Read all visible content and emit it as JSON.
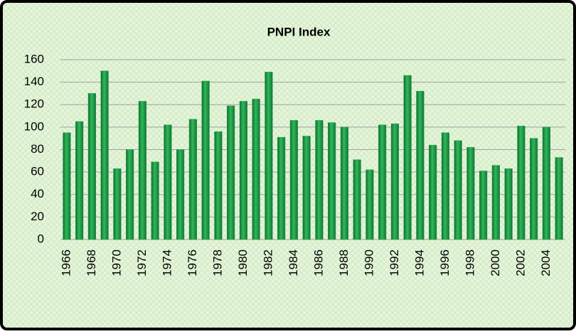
{
  "chart_data": {
    "type": "bar",
    "title": "PNPI Index",
    "categories": [
      "1966",
      null,
      "1968",
      null,
      "1970",
      null,
      "1972",
      null,
      "1974",
      null,
      "1976",
      null,
      "1978",
      null,
      "1980",
      null,
      "1982",
      null,
      "1984",
      null,
      "1986",
      null,
      "1988",
      null,
      "1990",
      null,
      "1992",
      null,
      "1994",
      null,
      "1996",
      null,
      "1998",
      null,
      "2000",
      null,
      "2002",
      null,
      "2004",
      null
    ],
    "values": [
      95,
      105,
      130,
      150,
      63,
      80,
      123,
      69,
      102,
      80,
      107,
      141,
      96,
      119,
      123,
      125,
      149,
      91,
      106,
      92,
      106,
      104,
      100,
      71,
      62,
      102,
      103,
      146,
      132,
      84,
      95,
      88,
      82,
      61,
      66,
      63,
      101,
      90,
      100,
      73
    ],
    "color": "#1f9a48",
    "ylim": [
      0,
      160
    ],
    "yticks": [
      0,
      20,
      40,
      60,
      80,
      100,
      120,
      140,
      160
    ],
    "grid": true
  }
}
